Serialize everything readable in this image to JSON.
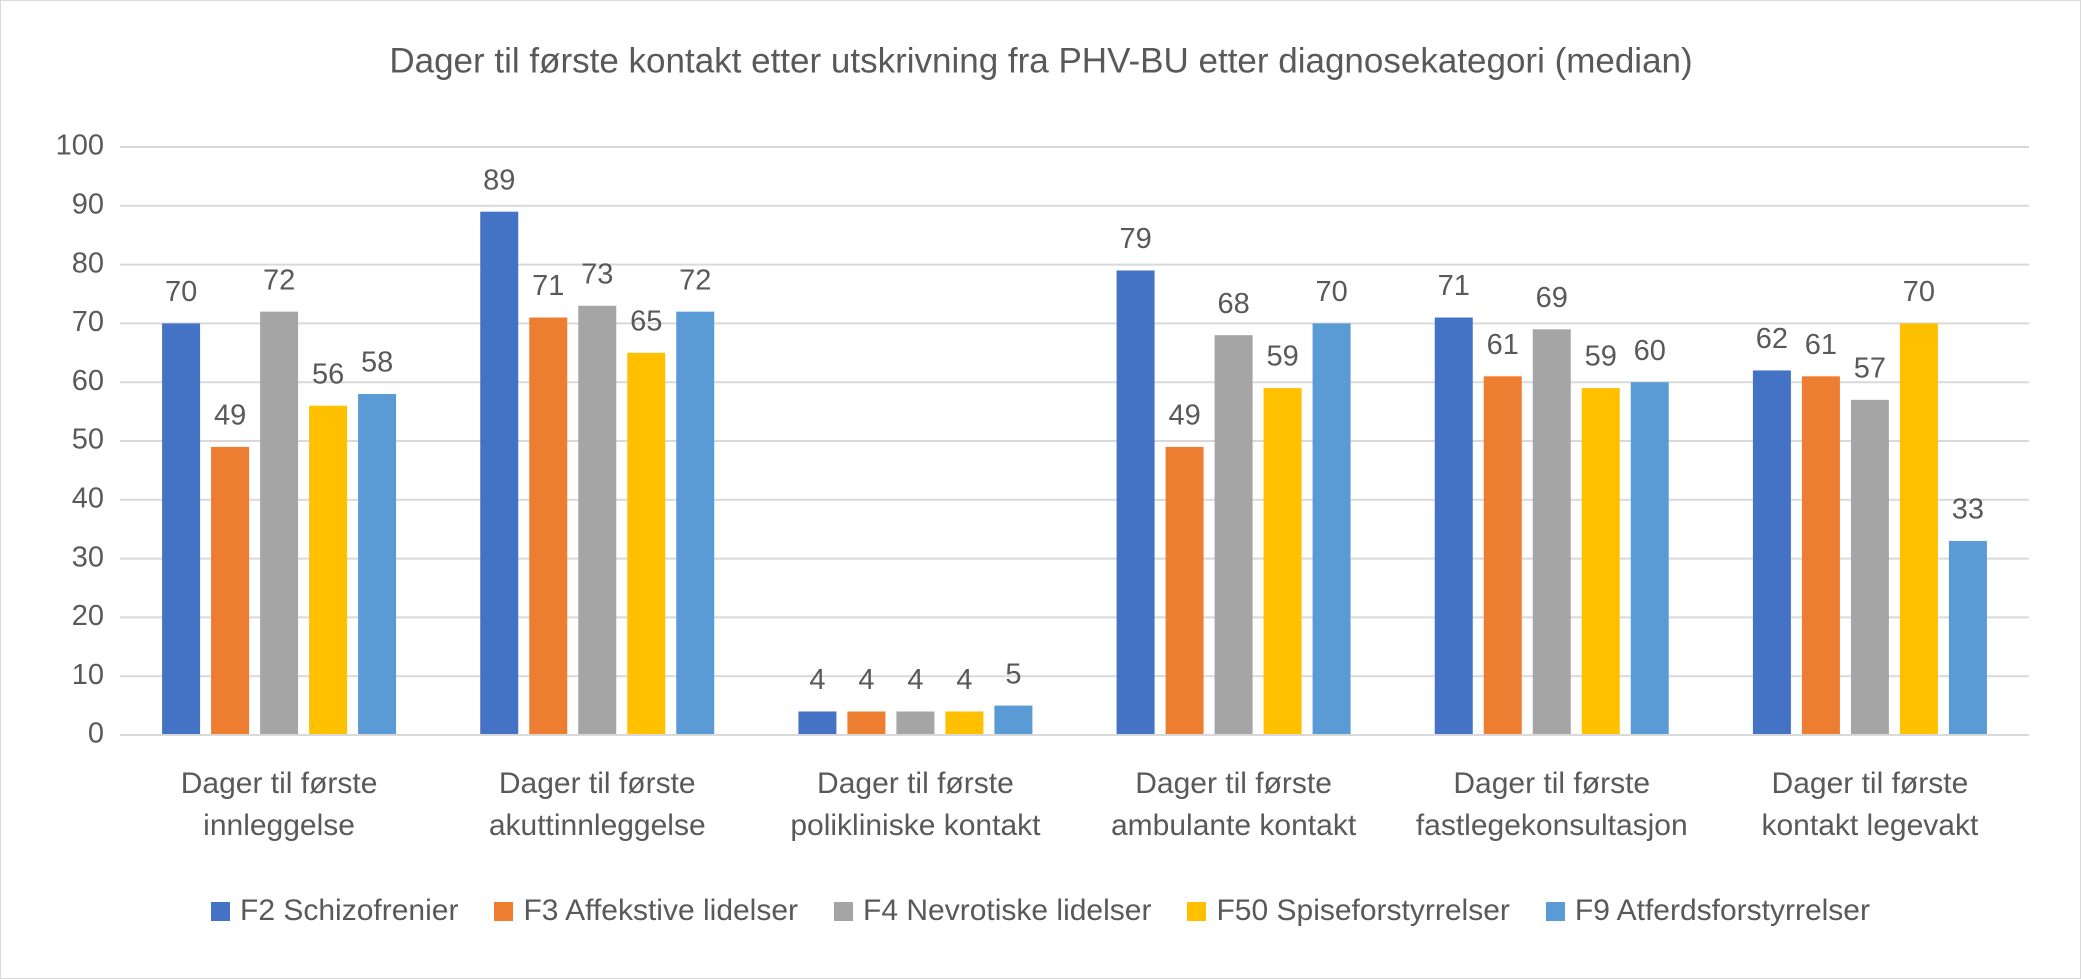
{
  "chart_data": {
    "type": "bar",
    "title": "Dager til første kontakt etter utskrivning fra PHV-BU etter diagnosekategori (median)",
    "categories": [
      "Dager til første innleggelse",
      "Dager til første akuttinnleggelse",
      "Dager til første polikliniske kontakt",
      "Dager til første ambulante kontakt",
      "Dager til første fastlegekonsultasjon",
      "Dager til første kontakt legevakt"
    ],
    "series": [
      {
        "name": "F2 Schizofrenier",
        "color": "#4472c4",
        "values": [
          70,
          89,
          4,
          79,
          71,
          62
        ]
      },
      {
        "name": "F3 Affekstive lidelser",
        "color": "#ed7d31",
        "values": [
          49,
          71,
          4,
          49,
          61,
          61
        ]
      },
      {
        "name": "F4 Nevrotiske lidelser",
        "color": "#a5a5a5",
        "values": [
          72,
          73,
          4,
          68,
          69,
          57
        ]
      },
      {
        "name": "F50 Spiseforstyrrelser",
        "color": "#ffc000",
        "values": [
          56,
          65,
          4,
          59,
          59,
          70
        ]
      },
      {
        "name": "F9 Atferdsforstyrrelser",
        "color": "#5b9bd5",
        "values": [
          58,
          72,
          5,
          70,
          60,
          33
        ]
      }
    ],
    "ylim": [
      0,
      100
    ],
    "yticks": [
      0,
      10,
      20,
      30,
      40,
      50,
      60,
      70,
      80,
      90,
      100
    ],
    "grid": true,
    "legend": "bottom"
  }
}
